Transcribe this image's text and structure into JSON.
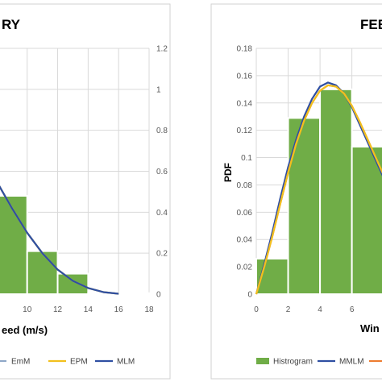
{
  "chart_data": [
    {
      "type": "bar",
      "title": "RY",
      "xlabel": "eed (m/s)",
      "ylabel": "",
      "axis_side": "right",
      "x_ticks": [
        "10",
        "12",
        "14",
        "16",
        "18"
      ],
      "y_ticks": [
        "0",
        "0.2",
        "0.4",
        "0.6",
        "0.8",
        "1",
        "1.2"
      ],
      "xlim": [
        7.9,
        18
      ],
      "ylim": [
        0,
        1.2
      ],
      "grid": true,
      "bars": [
        {
          "x0": 8,
          "x1": 10,
          "value": 0.48
        },
        {
          "x0": 10,
          "x1": 12,
          "value": 0.21
        },
        {
          "x0": 12,
          "x1": 14,
          "value": 0.1
        },
        {
          "x0": 14,
          "x1": 16,
          "value": 0.005
        },
        {
          "x0": 16,
          "x1": 18,
          "value": 0.005
        }
      ],
      "series": [
        {
          "name": "EmM",
          "color": "#8fa8c8",
          "x": [
            8,
            9,
            10,
            11,
            12,
            13,
            14,
            15,
            16
          ],
          "y": [
            0.55,
            0.42,
            0.3,
            0.2,
            0.12,
            0.065,
            0.03,
            0.01,
            0.002
          ]
        },
        {
          "name": "EPM",
          "color": "#f2c01e",
          "x": [
            8,
            9,
            10,
            11,
            12,
            13,
            14,
            15,
            16
          ],
          "y": [
            0.55,
            0.42,
            0.3,
            0.2,
            0.12,
            0.065,
            0.03,
            0.01,
            0.002
          ]
        },
        {
          "name": "MLM",
          "color": "#2f4fa2",
          "x": [
            8,
            9,
            10,
            11,
            12,
            13,
            14,
            15,
            16
          ],
          "y": [
            0.55,
            0.42,
            0.3,
            0.2,
            0.12,
            0.065,
            0.03,
            0.01,
            0.002
          ]
        }
      ],
      "legend": [
        "EmM",
        "EPM",
        "MLM"
      ]
    },
    {
      "type": "bar",
      "title": "FEB",
      "xlabel": "Win",
      "ylabel": "PDF",
      "axis_side": "left",
      "x_ticks": [
        "0",
        "2",
        "4",
        "6"
      ],
      "y_ticks": [
        "0",
        "0.02",
        "0.04",
        "0.06",
        "0.08",
        "0.1",
        "0.12",
        "0.14",
        "0.16",
        "0.18"
      ],
      "xlim": [
        0,
        8.8
      ],
      "ylim": [
        0,
        0.18
      ],
      "grid": true,
      "bars": [
        {
          "x0": 0,
          "x1": 2,
          "value": 0.026
        },
        {
          "x0": 2,
          "x1": 4,
          "value": 0.129
        },
        {
          "x0": 4,
          "x1": 6,
          "value": 0.15
        },
        {
          "x0": 6,
          "x1": 8,
          "value": 0.108
        }
      ],
      "series": [
        {
          "name": "MMLM",
          "color": "#2f4fa2",
          "x": [
            0,
            0.5,
            1,
            1.5,
            2,
            2.5,
            3,
            3.5,
            4,
            4.5,
            5,
            5.5,
            6,
            6.5,
            7,
            7.5,
            8
          ],
          "y": [
            0,
            0.022,
            0.045,
            0.07,
            0.093,
            0.113,
            0.13,
            0.143,
            0.152,
            0.155,
            0.153,
            0.147,
            0.137,
            0.124,
            0.111,
            0.098,
            0.085
          ]
        },
        {
          "name": "",
          "color": "#ed7d31",
          "x": [
            0,
            0.5,
            1,
            1.5,
            2,
            2.5,
            3,
            3.5,
            4,
            4.5,
            5,
            5.5,
            6,
            6.5,
            7,
            7.5,
            8
          ],
          "y": [
            0,
            0.02,
            0.042,
            0.066,
            0.089,
            0.11,
            0.127,
            0.14,
            0.149,
            0.153,
            0.152,
            0.147,
            0.138,
            0.126,
            0.113,
            0.1,
            0.087
          ]
        },
        {
          "name": "",
          "color": "#f2c01e",
          "x": [
            0,
            0.5,
            1,
            1.5,
            2,
            2.5,
            3,
            3.5,
            4,
            4.5,
            5,
            5.5,
            6,
            6.5,
            7,
            7.5,
            8
          ],
          "y": [
            0,
            0.02,
            0.042,
            0.066,
            0.089,
            0.11,
            0.127,
            0.14,
            0.149,
            0.153,
            0.152,
            0.147,
            0.138,
            0.126,
            0.113,
            0.1,
            0.087
          ]
        }
      ],
      "legend": [
        "Histrogram",
        "MMLM"
      ]
    }
  ],
  "colors": {
    "bar_fill": "#70ad47",
    "bar_stroke": "#ffffff"
  }
}
